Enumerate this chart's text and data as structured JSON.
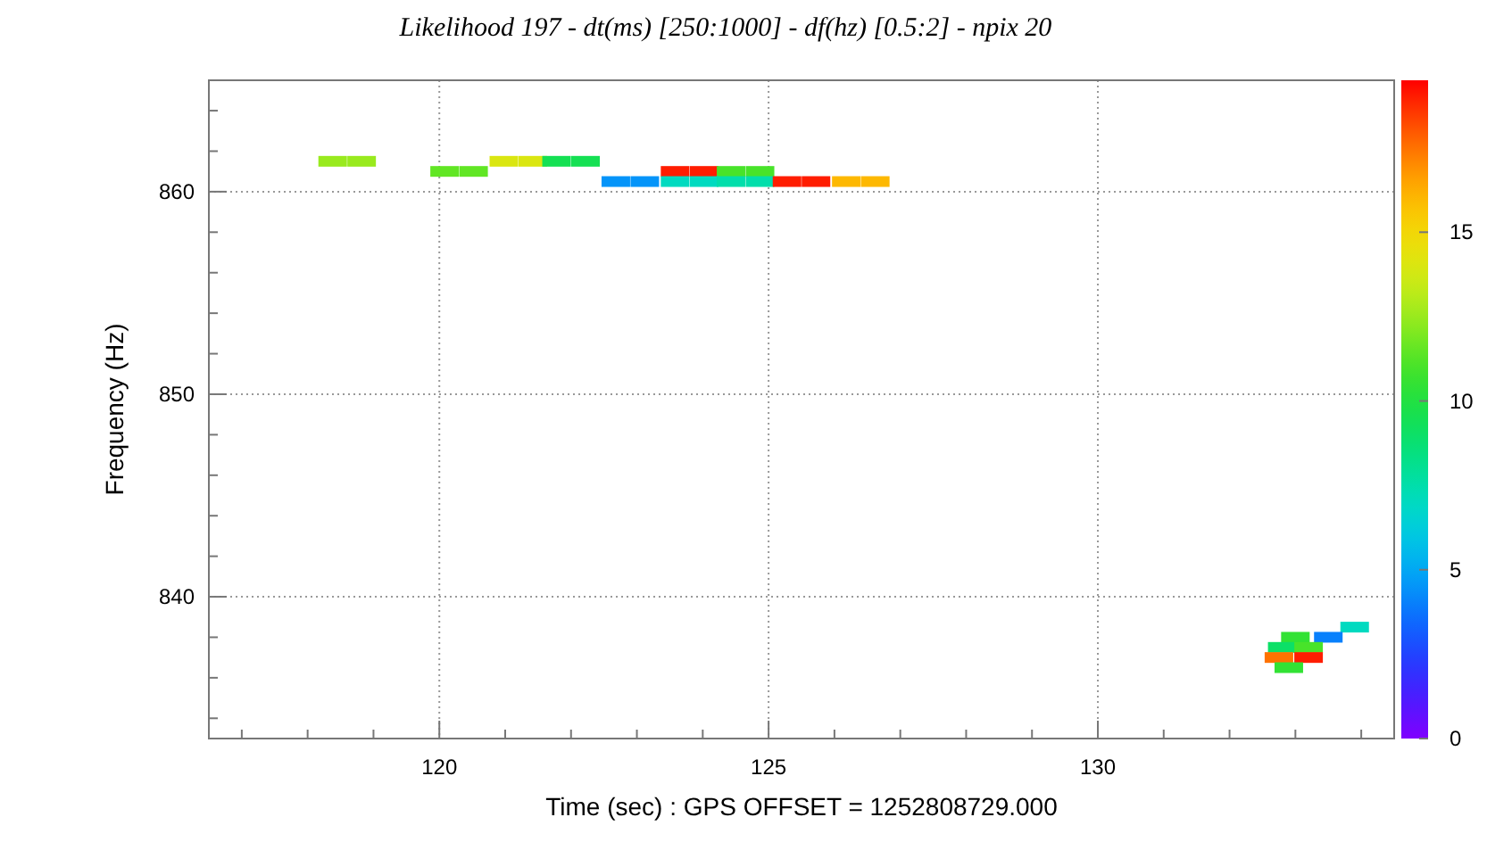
{
  "chart_data": {
    "type": "scatter",
    "title": "Likelihood 197 - dt(ms) [250:1000] - df(hz) [0.5:2] - npix 20",
    "xlabel": "Time (sec) : GPS OFFSET = 1252808729.000",
    "ylabel": "Frequency (Hz)",
    "marker": "square",
    "grid": true,
    "xlim": [
      116.5,
      134.5
    ],
    "ylim": [
      833,
      865.5
    ],
    "xticks": [
      {
        "value": 117,
        "label": null
      },
      {
        "value": 118,
        "label": null
      },
      {
        "value": 119,
        "label": null
      },
      120,
      {
        "value": 121,
        "label": null
      },
      {
        "value": 122,
        "label": null
      },
      {
        "value": 123,
        "label": null
      },
      {
        "value": 124,
        "label": null
      },
      125,
      {
        "value": 126,
        "label": null
      },
      {
        "value": 127,
        "label": null
      },
      {
        "value": 128,
        "label": null
      },
      {
        "value": 129,
        "label": null
      },
      130,
      {
        "value": 131,
        "label": null
      },
      {
        "value": 132,
        "label": null
      },
      {
        "value": 133,
        "label": null
      },
      {
        "value": 134,
        "label": null
      }
    ],
    "yticks": [
      {
        "value": 834,
        "label": null
      },
      {
        "value": 836,
        "label": null
      },
      {
        "value": 838,
        "label": null
      },
      840,
      {
        "value": 842,
        "label": null
      },
      {
        "value": 844,
        "label": null
      },
      {
        "value": 846,
        "label": null
      },
      {
        "value": 848,
        "label": null
      },
      850,
      {
        "value": 852,
        "label": null
      },
      {
        "value": 854,
        "label": null
      },
      {
        "value": 856,
        "label": null
      },
      {
        "value": 858,
        "label": null
      },
      860,
      {
        "value": 862,
        "label": null
      },
      {
        "value": 864,
        "label": null
      }
    ],
    "clim": [
      0,
      19.5
    ],
    "cticks": [
      0,
      5,
      10,
      15
    ],
    "x": [
      118.38,
      118.82,
      120.98,
      121.42,
      121.78,
      122.22,
      120.08,
      120.52,
      123.58,
      124.02,
      124.43,
      124.87,
      122.68,
      123.12,
      123.58,
      124.02,
      124.43,
      124.87,
      125.28,
      125.72,
      126.18,
      126.62,
      133.9,
      133.0,
      133.5,
      132.8,
      133.2,
      132.75,
      133.2,
      132.9
    ],
    "values": [
      861.5,
      861.5,
      861.5,
      861.5,
      861.5,
      861.5,
      861.0,
      861.0,
      861.0,
      861.0,
      861.0,
      861.0,
      860.5,
      860.5,
      860.5,
      860.5,
      860.5,
      860.5,
      860.5,
      860.5,
      860.5,
      860.5,
      838.5,
      838.0,
      838.0,
      837.5,
      837.5,
      837.0,
      837.0,
      836.5
    ],
    "cvalues": [
      12.5,
      12.5,
      14,
      14,
      9.5,
      9.5,
      11.5,
      11.5,
      19,
      19,
      11,
      11,
      4.5,
      4.5,
      7,
      7,
      7.5,
      7.5,
      19,
      19,
      16,
      16,
      7,
      10.5,
      4,
      9,
      11,
      17.5,
      19,
      10.5
    ]
  }
}
